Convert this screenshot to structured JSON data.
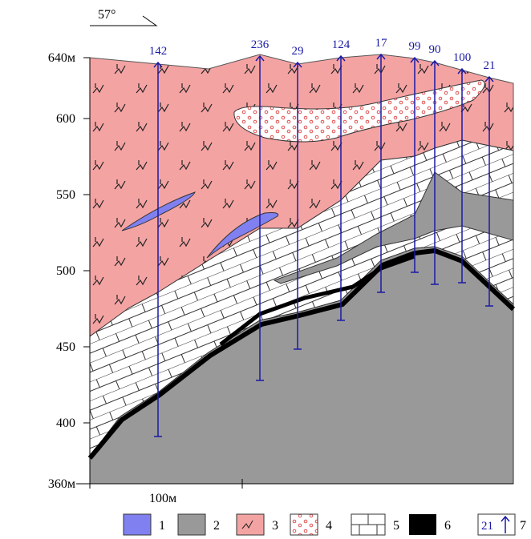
{
  "orientation": "57°",
  "elevations": [
    "640м",
    "600",
    "550",
    "500",
    "450",
    "400",
    "360м"
  ],
  "boreholes": [
    "142",
    "236",
    "29",
    "124",
    "17",
    "99",
    "90",
    "100",
    "21"
  ],
  "scale_bar": "100м",
  "legend": [
    {
      "number": "1"
    },
    {
      "number": "2"
    },
    {
      "number": "3"
    },
    {
      "number": "4"
    },
    {
      "number": "5"
    },
    {
      "number": "6"
    },
    {
      "number": "7",
      "sample": "21"
    }
  ]
}
